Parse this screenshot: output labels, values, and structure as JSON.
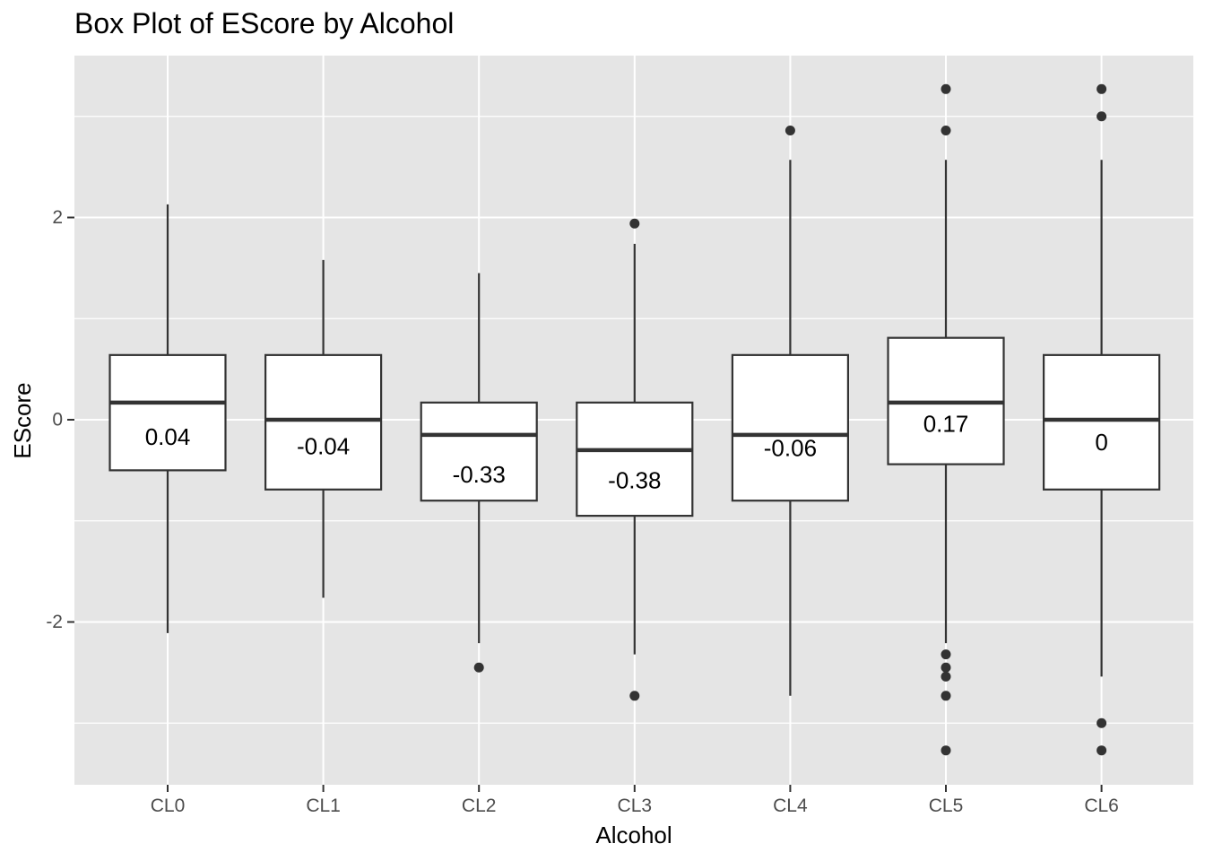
{
  "chart_data": {
    "type": "box",
    "title": "Box Plot of EScore by Alcohol",
    "xlabel": "Alcohol",
    "ylabel": "EScore",
    "ylim": [
      -3.6,
      3.6
    ],
    "y_ticks": [
      -2,
      0,
      2
    ],
    "y_tick_labels": [
      "-2",
      "0",
      "2"
    ],
    "grid": true,
    "categories": [
      "CL0",
      "CL1",
      "CL2",
      "CL3",
      "CL4",
      "CL5",
      "CL6"
    ],
    "boxes": [
      {
        "category": "CL0",
        "whisker_low": -2.11,
        "q1": -0.5,
        "median": 0.17,
        "q3": 0.64,
        "whisker_high": 2.13,
        "outliers": [],
        "label": "0.04",
        "label_y": -0.17
      },
      {
        "category": "CL1",
        "whisker_low": -1.76,
        "q1": -0.69,
        "median": 0.0,
        "q3": 0.64,
        "whisker_high": 1.58,
        "outliers": [],
        "label": "-0.04",
        "label_y": -0.26
      },
      {
        "category": "CL2",
        "whisker_low": -2.21,
        "q1": -0.8,
        "median": -0.15,
        "q3": 0.17,
        "whisker_high": 1.45,
        "outliers": [
          -2.45
        ],
        "label": "-0.33",
        "label_y": -0.54
      },
      {
        "category": "CL3",
        "whisker_low": -2.32,
        "q1": -0.95,
        "median": -0.3,
        "q3": 0.17,
        "whisker_high": 1.74,
        "outliers": [
          1.94,
          -2.73
        ],
        "label": "-0.38",
        "label_y": -0.6
      },
      {
        "category": "CL4",
        "whisker_low": -2.73,
        "q1": -0.8,
        "median": -0.15,
        "q3": 0.64,
        "whisker_high": 2.57,
        "outliers": [
          2.86
        ],
        "label": "-0.06",
        "label_y": -0.28
      },
      {
        "category": "CL5",
        "whisker_low": -2.21,
        "q1": -0.44,
        "median": 0.17,
        "q3": 0.81,
        "whisker_high": 2.57,
        "outliers": [
          3.27,
          2.86,
          -2.32,
          -2.45,
          -2.54,
          -2.73,
          -3.27
        ],
        "label": "0.17",
        "label_y": -0.04
      },
      {
        "category": "CL6",
        "whisker_low": -2.54,
        "q1": -0.69,
        "median": 0.0,
        "q3": 0.64,
        "whisker_high": 2.57,
        "outliers": [
          3.27,
          3.0,
          -3.0,
          -3.27
        ],
        "label": "0",
        "label_y": -0.22
      }
    ]
  }
}
